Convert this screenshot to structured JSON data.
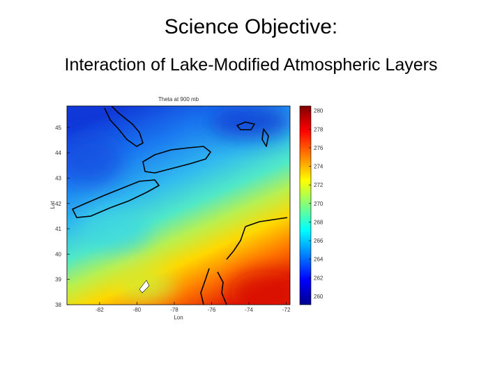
{
  "slide": {
    "title": "Science Objective:",
    "subtitle": "Interaction of Lake-Modified Atmospheric Layers"
  },
  "chart_data": {
    "type": "contour",
    "title": "Theta at 900 mb",
    "xlabel": "Lon",
    "ylabel": "Lat",
    "xlim": [
      -83.75,
      -71.8
    ],
    "xticks": [
      -82,
      -80,
      -78,
      -76,
      -74,
      -72
    ],
    "ylim": [
      38,
      45.85
    ],
    "yticks": [
      38,
      39,
      40,
      41,
      42,
      43,
      44,
      45
    ],
    "clim": [
      259.1,
      280.5
    ],
    "cticks": [
      260,
      262,
      264,
      266,
      268,
      270,
      272,
      274,
      276,
      278,
      280
    ],
    "colormap": "jet"
  }
}
